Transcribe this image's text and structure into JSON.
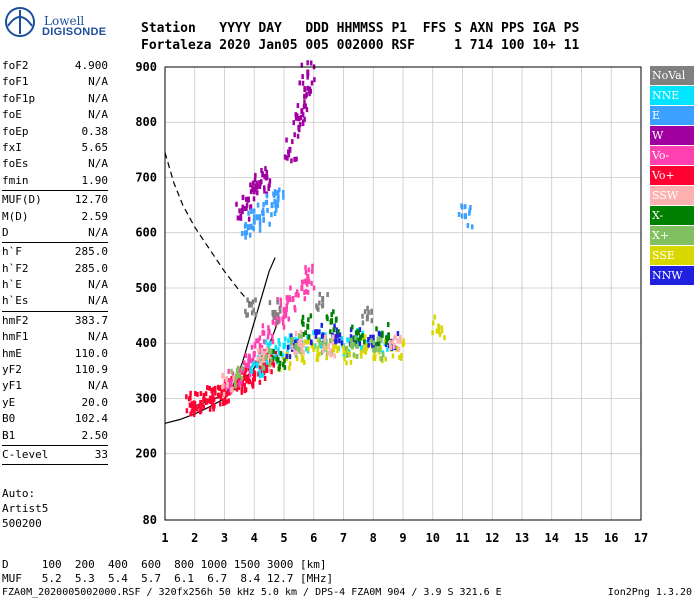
{
  "logo": {
    "line1": "Lowell",
    "line2": "DIGISONDE"
  },
  "header": {
    "row1": "Station   YYYY DAY   DDD HHMMSS P1  FFS S AXN PPS IGA PS",
    "row2": "Fortaleza 2020 Jan05 005 002000 RSF     1 714 100 10+ 11"
  },
  "params": [
    {
      "k": "foF2",
      "v": "4.900"
    },
    {
      "k": "foF1",
      "v": "N/A"
    },
    {
      "k": "foF1p",
      "v": "N/A"
    },
    {
      "k": "foE",
      "v": "N/A"
    },
    {
      "k": "foEp",
      "v": "0.38"
    },
    {
      "k": "fxI",
      "v": "5.65"
    },
    {
      "k": "foEs",
      "v": "N/A"
    },
    {
      "k": "fmin",
      "v": "1.90"
    },
    {
      "sep": true
    },
    {
      "k": "MUF(D)",
      "v": "12.70"
    },
    {
      "k": "M(D)",
      "v": "2.59"
    },
    {
      "k": "D",
      "v": "N/A"
    },
    {
      "sep": true
    },
    {
      "k": "h`F",
      "v": "285.0"
    },
    {
      "k": "h`F2",
      "v": "285.0"
    },
    {
      "k": "h`E",
      "v": "N/A"
    },
    {
      "k": "h`Es",
      "v": "N/A"
    },
    {
      "sep": true
    },
    {
      "k": "hmF2",
      "v": "383.7"
    },
    {
      "k": "hmF1",
      "v": "N/A"
    },
    {
      "k": "hmE",
      "v": "110.0"
    },
    {
      "k": "yF2",
      "v": "110.9"
    },
    {
      "k": "yF1",
      "v": "N/A"
    },
    {
      "k": "yE",
      "v": "20.0"
    },
    {
      "k": "B0",
      "v": "102.4"
    },
    {
      "k": "B1",
      "v": "2.50"
    },
    {
      "sep": true
    },
    {
      "k": "C-level",
      "v": "33"
    },
    {
      "sep": true
    }
  ],
  "auto": {
    "line1": "Auto:",
    "line2": "Artist5",
    "line3": "500200"
  },
  "legend": [
    {
      "label": "NoVal",
      "color": "#808080"
    },
    {
      "label": "NNE",
      "color": "#00e5ff"
    },
    {
      "label": "E",
      "color": "#3ba0ff"
    },
    {
      "label": "W",
      "color": "#a000a0"
    },
    {
      "label": "Vo-",
      "color": "#ff40b0"
    },
    {
      "label": "Vo+",
      "color": "#ff0030"
    },
    {
      "label": "SSW",
      "color": "#ffb0b0"
    },
    {
      "label": "X-",
      "color": "#008000"
    },
    {
      "label": "X+",
      "color": "#80c060"
    },
    {
      "label": "SSE",
      "color": "#d8d800"
    },
    {
      "label": "NNW",
      "color": "#2020e0"
    }
  ],
  "bottom": {
    "d_row": "D     100  200  400  600  800 1000 1500 3000 [km]",
    "muf_row": "MUF   5.2  5.3  5.4  5.7  6.1  6.7  8.4 12.7 [MHz]"
  },
  "footer": {
    "left": "FZA0M_2020005002000.RSF / 320fx256h 50 kHz 5.0 km / DPS-4 FZA0M 904 / 3.9 S 321.6 E",
    "right": "Ion2Png 1.3.20"
  },
  "chart_data": {
    "type": "scatter",
    "x_label": "",
    "y_label": "",
    "xlim": [
      1,
      17
    ],
    "ylim": [
      80,
      900
    ],
    "x_ticks": [
      1,
      2,
      3,
      4,
      5,
      6,
      7,
      8,
      9,
      10,
      11,
      12,
      13,
      14,
      15,
      16,
      17
    ],
    "y_ticks": [
      80,
      200,
      300,
      400,
      500,
      600,
      700,
      800,
      900
    ],
    "grid": true,
    "legend_position": "right",
    "series": [
      {
        "name": "Vo+",
        "color": "#ff0030",
        "points": [
          [
            1.9,
            288
          ],
          [
            2.0,
            290
          ],
          [
            2.2,
            292
          ],
          [
            2.4,
            295
          ],
          [
            2.6,
            300
          ],
          [
            2.8,
            305
          ],
          [
            3.0,
            310
          ],
          [
            3.2,
            315
          ],
          [
            3.4,
            320
          ],
          [
            3.6,
            328
          ],
          [
            3.8,
            335
          ],
          [
            4.0,
            345
          ],
          [
            4.2,
            355
          ],
          [
            4.4,
            360
          ],
          [
            4.6,
            365
          ]
        ]
      },
      {
        "name": "Vo-",
        "color": "#ff40b0",
        "points": [
          [
            3.2,
            330
          ],
          [
            3.5,
            345
          ],
          [
            3.8,
            360
          ],
          [
            4.0,
            380
          ],
          [
            4.2,
            395
          ],
          [
            4.5,
            420
          ],
          [
            4.8,
            440
          ],
          [
            5.0,
            460
          ],
          [
            5.3,
            480
          ],
          [
            5.6,
            500
          ],
          [
            5.8,
            520
          ]
        ]
      },
      {
        "name": "W",
        "color": "#a000a0",
        "points": [
          [
            3.6,
            640
          ],
          [
            3.8,
            660
          ],
          [
            4.0,
            675
          ],
          [
            4.2,
            690
          ],
          [
            4.4,
            700
          ],
          [
            5.2,
            750
          ],
          [
            5.5,
            790
          ],
          [
            5.6,
            820
          ],
          [
            5.7,
            860
          ],
          [
            5.8,
            890
          ]
        ]
      },
      {
        "name": "E",
        "color": "#3ba0ff",
        "points": [
          [
            3.8,
            610
          ],
          [
            4.0,
            620
          ],
          [
            4.3,
            635
          ],
          [
            4.6,
            650
          ],
          [
            4.8,
            660
          ],
          [
            11.1,
            630
          ]
        ]
      },
      {
        "name": "NNE",
        "color": "#00e5ff",
        "points": [
          [
            4.1,
            360
          ],
          [
            4.6,
            385
          ],
          [
            5.0,
            395
          ],
          [
            5.6,
            400
          ],
          [
            6.2,
            405
          ],
          [
            7.0,
            395
          ],
          [
            7.6,
            410
          ],
          [
            8.4,
            400
          ]
        ]
      },
      {
        "name": "SSE",
        "color": "#d8d800",
        "points": [
          [
            5.0,
            370
          ],
          [
            5.6,
            385
          ],
          [
            6.0,
            390
          ],
          [
            6.6,
            385
          ],
          [
            7.2,
            380
          ],
          [
            7.8,
            395
          ],
          [
            8.2,
            385
          ],
          [
            8.8,
            390
          ],
          [
            10.2,
            430
          ]
        ]
      },
      {
        "name": "NNW",
        "color": "#2020e0",
        "points": [
          [
            5.3,
            395
          ],
          [
            6.1,
            420
          ],
          [
            6.8,
            415
          ],
          [
            7.4,
            405
          ],
          [
            8.0,
            410
          ],
          [
            8.6,
            400
          ]
        ]
      },
      {
        "name": "X-",
        "color": "#008000",
        "points": [
          [
            4.8,
            370
          ],
          [
            5.8,
            430
          ],
          [
            6.6,
            440
          ],
          [
            7.5,
            420
          ],
          [
            8.3,
            415
          ]
        ]
      },
      {
        "name": "X+",
        "color": "#80c060",
        "points": [
          [
            3.4,
            340
          ],
          [
            4.4,
            375
          ],
          [
            5.4,
            395
          ],
          [
            6.4,
            400
          ],
          [
            7.3,
            395
          ],
          [
            8.1,
            390
          ]
        ]
      },
      {
        "name": "SSW",
        "color": "#ffb0b0",
        "points": [
          [
            3.1,
            325
          ],
          [
            4.3,
            370
          ],
          [
            5.5,
            400
          ],
          [
            6.5,
            395
          ],
          [
            8.7,
            395
          ]
        ]
      },
      {
        "name": "NoVal",
        "color": "#808080",
        "points": [
          [
            3.9,
            470
          ],
          [
            4.7,
            455
          ],
          [
            6.3,
            480
          ],
          [
            7.8,
            445
          ]
        ]
      }
    ],
    "curves": [
      {
        "style": "dashed",
        "points": [
          [
            1.0,
            745
          ],
          [
            1.3,
            690
          ],
          [
            1.6,
            650
          ],
          [
            2.0,
            610
          ],
          [
            2.5,
            570
          ],
          [
            3.0,
            530
          ],
          [
            3.5,
            495
          ],
          [
            3.9,
            470
          ]
        ]
      },
      {
        "style": "solid",
        "points": [
          [
            1.0,
            255
          ],
          [
            1.5,
            262
          ],
          [
            2.0,
            272
          ],
          [
            2.5,
            285
          ],
          [
            3.0,
            300
          ],
          [
            3.5,
            325
          ],
          [
            4.0,
            355
          ],
          [
            4.3,
            380
          ],
          [
            4.6,
            410
          ],
          [
            4.8,
            440
          ]
        ]
      },
      {
        "style": "solid",
        "points": [
          [
            1.9,
            285
          ],
          [
            2.5,
            295
          ],
          [
            3.0,
            308
          ],
          [
            3.3,
            325
          ],
          [
            3.6,
            365
          ],
          [
            3.9,
            420
          ],
          [
            4.2,
            475
          ],
          [
            4.5,
            530
          ],
          [
            4.7,
            555
          ]
        ]
      }
    ]
  }
}
